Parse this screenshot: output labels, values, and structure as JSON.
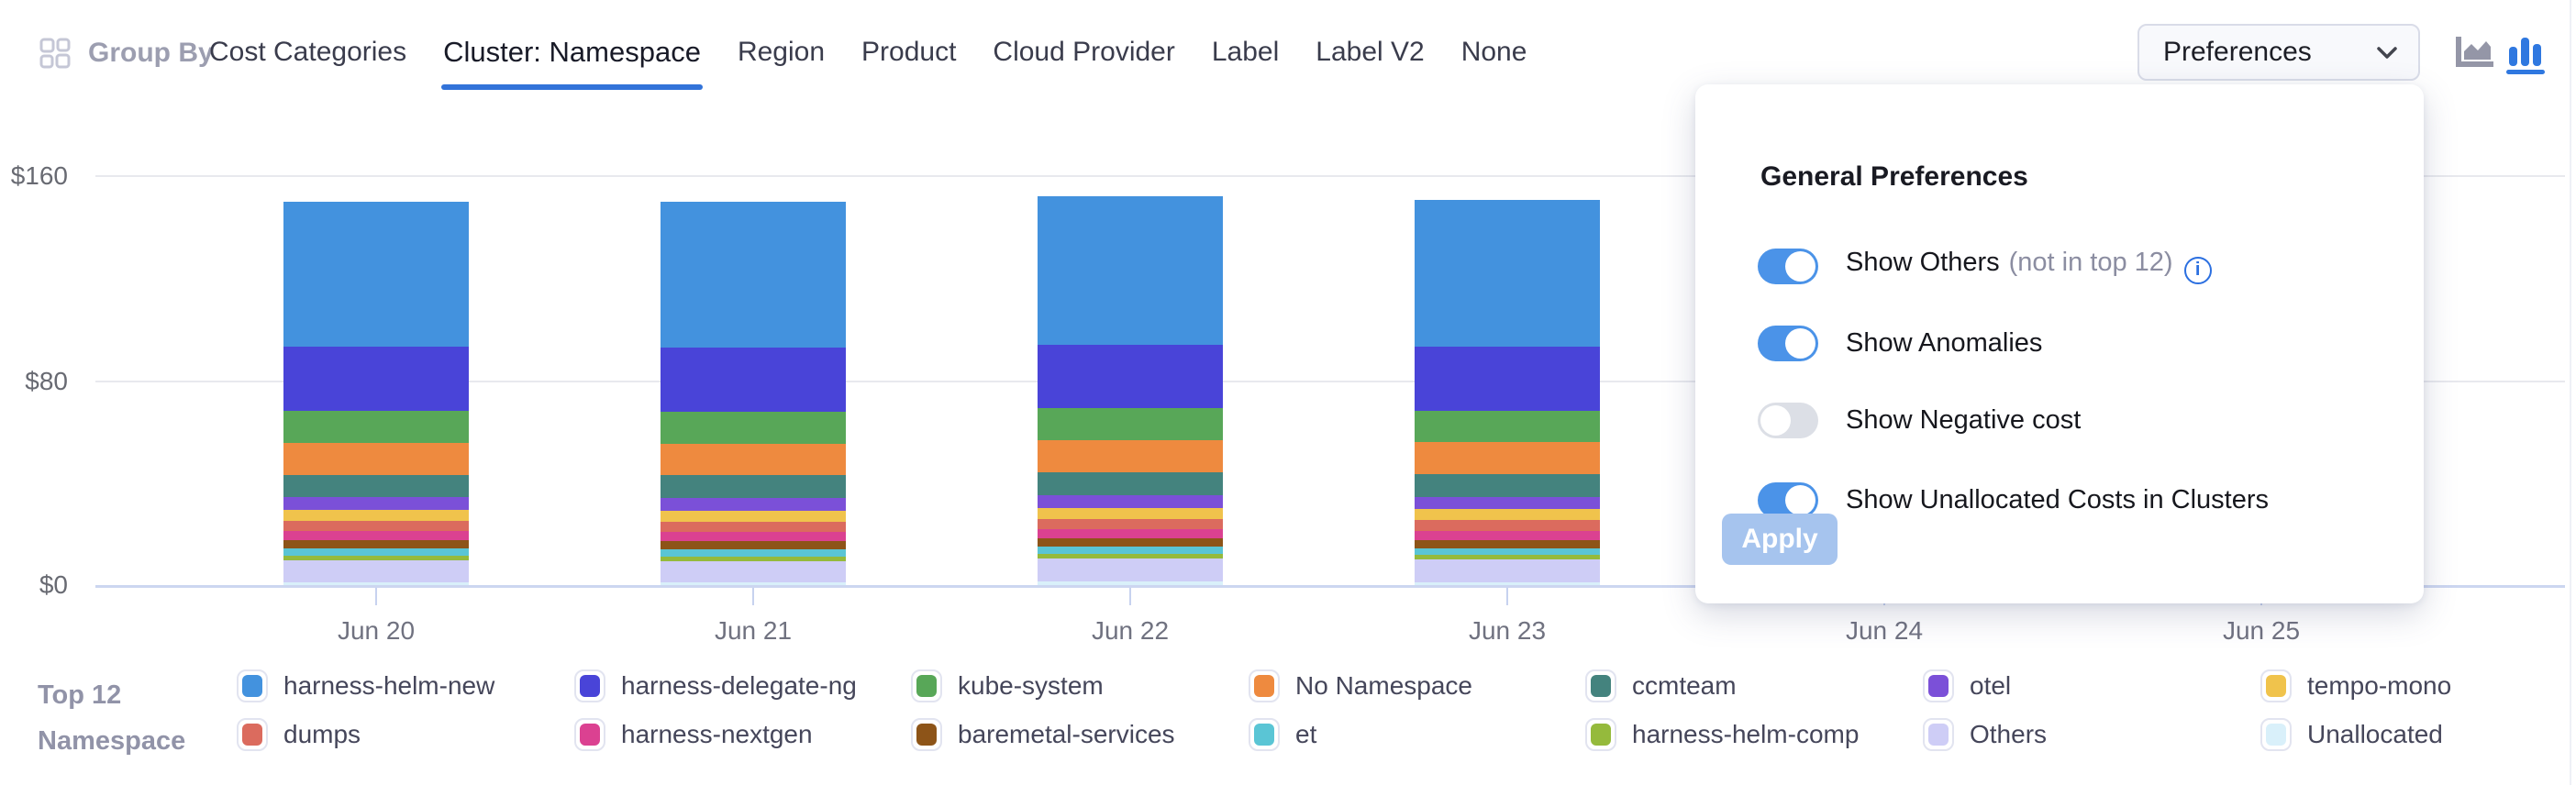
{
  "header": {
    "group_by_label": "Group By",
    "tabs": [
      "Cost Categories",
      "Cluster: Namespace",
      "Region",
      "Product",
      "Cloud Provider",
      "Label",
      "Label V2",
      "None"
    ],
    "active_tab": "Cluster: Namespace",
    "preferences_button": "Preferences"
  },
  "icons": {
    "group_by": "grid-icon",
    "dropdown": "chevron-down-icon",
    "chart_types": [
      "area-chart-icon",
      "bar-chart-icon"
    ],
    "selected_chart_type": "bar-chart-icon",
    "toggle_info": "info-icon"
  },
  "colors": {
    "accent_blue": "#3273d9",
    "toggle_on": "#4b93e8",
    "toggle_off": "#dcdfe6",
    "apply_bg": "#a6c4ee",
    "axis_line": "#ccd6f0",
    "gridline": "#e8e9ee"
  },
  "chart_data": {
    "type": "bar",
    "stacked": true,
    "x_categories": [
      "Jun 20",
      "Jun 21",
      "Jun 22",
      "Jun 23",
      "Jun 24",
      "Jun 25"
    ],
    "y_tick_labels": [
      "$160",
      "$80",
      "$0"
    ],
    "ylim": [
      0,
      160
    ],
    "y_unit": "$",
    "grid": true,
    "legend_position": "bottom",
    "legend_title_lines": [
      "Top 12",
      "Namespace"
    ],
    "series": [
      {
        "name": "harness-helm-new",
        "color": "#4392de",
        "values": [
          57,
          57,
          58,
          57.2,
          null,
          null
        ]
      },
      {
        "name": "harness-delegate-ng",
        "color": "#4944d8",
        "values": [
          25,
          25,
          25,
          25,
          null,
          null
        ]
      },
      {
        "name": "kube-system",
        "color": "#58a758",
        "values": [
          12.4,
          12.5,
          12.5,
          12.4,
          null,
          null
        ]
      },
      {
        "name": "No Namespace",
        "color": "#ee8a3f",
        "values": [
          12.5,
          12.4,
          12.5,
          12.5,
          null,
          null
        ]
      },
      {
        "name": "ccmteam",
        "color": "#44837e",
        "values": [
          8.9,
          9.0,
          9.0,
          8.9,
          null,
          null
        ]
      },
      {
        "name": "otel",
        "color": "#7b50d8",
        "values": [
          4.9,
          4.8,
          4.9,
          4.9,
          null,
          null
        ]
      },
      {
        "name": "tempo-mono",
        "color": "#f0c34c",
        "values": [
          4.2,
          4.2,
          4.2,
          4.2,
          null,
          null
        ]
      },
      {
        "name": "dumps",
        "color": "#db6b5e",
        "values": [
          4.1,
          4.1,
          4.1,
          4.1,
          null,
          null
        ]
      },
      {
        "name": "harness-nextgen",
        "color": "#db4191",
        "values": [
          3.6,
          3.6,
          3.7,
          3.6,
          null,
          null
        ]
      },
      {
        "name": "baremetal-services",
        "color": "#8d5418",
        "values": [
          3.3,
          3.4,
          3.3,
          3.3,
          null,
          null
        ]
      },
      {
        "name": "et",
        "color": "#5ac5d5",
        "values": [
          2.7,
          2.6,
          2.7,
          2.7,
          null,
          null
        ]
      },
      {
        "name": "harness-helm-comp",
        "color": "#95ba3c",
        "values": [
          1.8,
          1.8,
          1.9,
          1.8,
          null,
          null
        ]
      },
      {
        "name": "Others",
        "color": "#cecdf6",
        "values": [
          8.5,
          8.4,
          9.0,
          8.8,
          null,
          null
        ]
      },
      {
        "name": "Unallocated",
        "color": "#d9f0fa",
        "values": [
          1.2,
          1.0,
          1.3,
          1.1,
          null,
          null
        ]
      }
    ]
  },
  "preferences_panel": {
    "title": "General Preferences",
    "toggles": [
      {
        "label": "Show Others",
        "suffix": "(not in top 12)",
        "info": true,
        "on": true
      },
      {
        "label": "Show Anomalies",
        "info": false,
        "on": true
      },
      {
        "label": "Show Negative cost",
        "info": false,
        "on": false
      },
      {
        "label": "Show Unallocated Costs in Clusters",
        "info": false,
        "on": true
      }
    ],
    "apply_label": "Apply"
  }
}
